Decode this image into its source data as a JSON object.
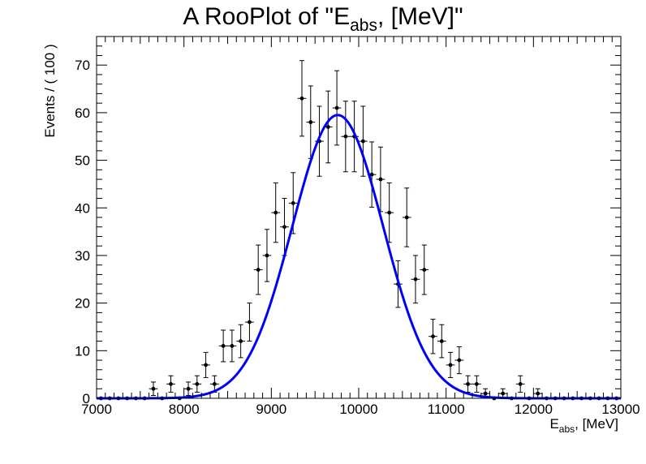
{
  "chart_data": {
    "type": "scatter",
    "title": {
      "main": "A RooPlot of \"E",
      "sub": "abs",
      "tail": ", [MeV]\""
    },
    "xlabel": {
      "main": "E",
      "sub": "abs",
      "tail": ", [MeV]"
    },
    "ylabel": "Events / ( 100 )",
    "xlim": [
      7000,
      13000
    ],
    "ylim": [
      0,
      76
    ],
    "x_ticks": [
      7000,
      8000,
      9000,
      10000,
      11000,
      12000,
      13000
    ],
    "y_ticks": [
      0,
      10,
      20,
      30,
      40,
      50,
      60,
      70
    ],
    "bin_width": 100,
    "series": [
      {
        "kind": "data_points_with_errors",
        "color": "#000000",
        "x": [
          7050,
          7150,
          7250,
          7350,
          7450,
          7550,
          7650,
          7750,
          7850,
          7950,
          8050,
          8150,
          8250,
          8350,
          8450,
          8550,
          8650,
          8750,
          8850,
          8950,
          9050,
          9150,
          9250,
          9350,
          9450,
          9550,
          9650,
          9750,
          9850,
          9950,
          10050,
          10150,
          10250,
          10350,
          10450,
          10550,
          10650,
          10750,
          10850,
          10950,
          11050,
          11150,
          11250,
          11350,
          11450,
          11550,
          11650,
          11750,
          11850,
          11950,
          12050,
          12150,
          12250,
          12350,
          12450,
          12550,
          12650,
          12750,
          12850,
          12950
        ],
        "y": [
          0,
          0,
          0,
          0,
          0,
          0,
          2,
          0,
          3,
          0,
          2,
          3,
          7,
          3,
          11,
          11,
          12,
          16,
          27,
          30,
          39,
          36,
          41,
          63,
          58,
          54,
          57,
          61,
          55,
          55,
          54,
          47,
          46,
          39,
          24,
          38,
          25,
          27,
          13,
          12,
          7,
          8,
          3,
          3,
          1,
          0,
          1,
          0,
          3,
          0,
          1,
          0,
          0,
          0,
          0,
          0,
          0,
          0,
          0,
          0
        ]
      },
      {
        "kind": "gaussian_fit_curve",
        "color": "#0000ff",
        "mean": 9760,
        "sigma": 520,
        "amplitude": 59.5
      }
    ]
  },
  "colors": {
    "frame": "#000000",
    "fit": "#0000ff",
    "points": "#000000",
    "background": "#ffffff"
  }
}
